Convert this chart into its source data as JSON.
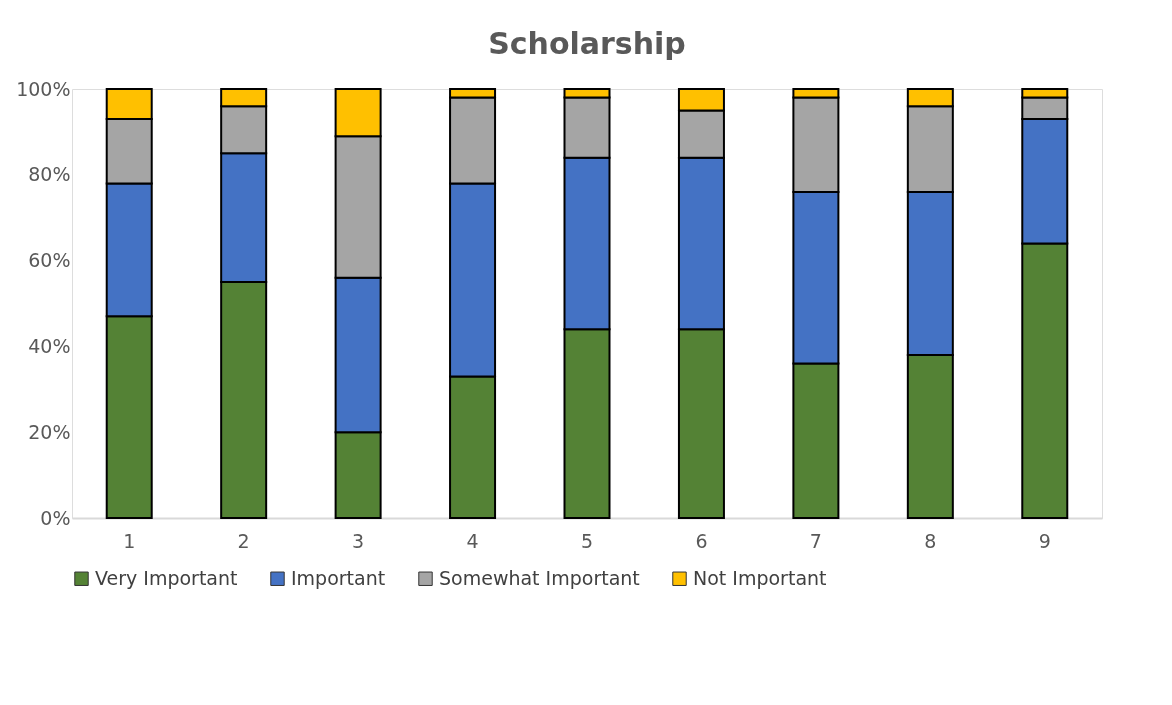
{
  "chart_data": {
    "type": "bar",
    "title": "Scholarship",
    "stacked": true,
    "categories": [
      "1",
      "2",
      "3",
      "4",
      "5",
      "6",
      "7",
      "8",
      "9"
    ],
    "series": [
      {
        "name": "Very Important",
        "color": "#548235",
        "values": [
          47,
          55,
          20,
          33,
          44,
          44,
          36,
          38,
          64
        ]
      },
      {
        "name": "Important",
        "color": "#4472c4",
        "values": [
          31,
          30,
          36,
          45,
          40,
          40,
          40,
          38,
          29
        ]
      },
      {
        "name": "Somewhat Important",
        "color": "#a5a5a5",
        "values": [
          15,
          11,
          33,
          20,
          14,
          11,
          22,
          20,
          5
        ]
      },
      {
        "name": "Not Important",
        "color": "#ffc000",
        "values": [
          7,
          4,
          11,
          2,
          2,
          5,
          2,
          4,
          2
        ]
      }
    ],
    "ylim": [
      0,
      100
    ],
    "yticks": [
      {
        "value": 0,
        "label": "0%"
      },
      {
        "value": 20,
        "label": "20%"
      },
      {
        "value": 40,
        "label": "40%"
      },
      {
        "value": 60,
        "label": "60%"
      },
      {
        "value": 80,
        "label": "80%"
      },
      {
        "value": 100,
        "label": "100%"
      }
    ],
    "grid": false,
    "legend": "bottom"
  }
}
